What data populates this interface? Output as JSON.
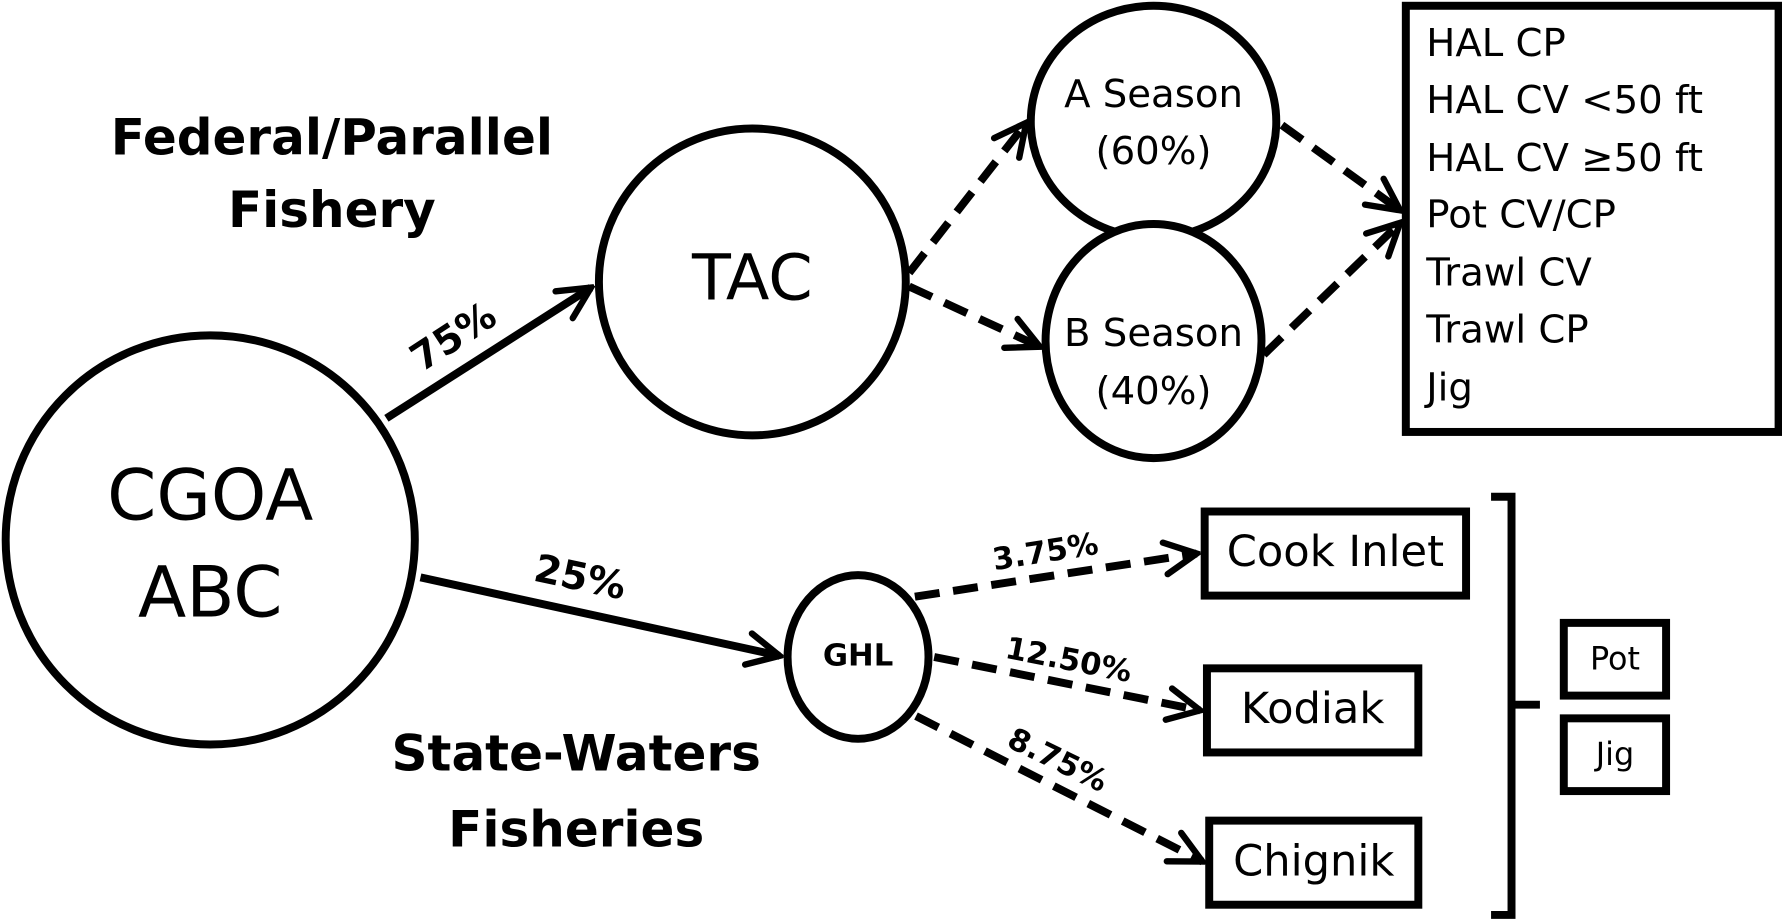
{
  "groups": {
    "federal": [
      "Federal/Parallel",
      "Fishery"
    ],
    "state": [
      "State-Waters",
      "Fisheries"
    ]
  },
  "nodes": [
    {
      "lines": [
        "CGOA",
        "ABC"
      ]
    },
    {
      "lines": [
        "TAC"
      ]
    },
    {
      "lines": [
        "A Season",
        "(60%)"
      ]
    },
    {
      "lines": [
        "B Season",
        "(40%)"
      ]
    },
    {
      "lines": [
        "GHL"
      ]
    }
  ],
  "edges": [
    "75%",
    "25%",
    "3.75%",
    "12.50%",
    "8.75%"
  ],
  "sectors": [
    "HAL CP",
    "HAL CV <50 ft",
    "HAL CV ≥50 ft",
    "Pot CV/CP",
    "Trawl CV",
    "Trawl CP",
    "Jig"
  ],
  "areas": [
    "Cook Inlet",
    "Kodiak",
    "Chignik"
  ],
  "gears": [
    "Pot",
    "Jig"
  ]
}
